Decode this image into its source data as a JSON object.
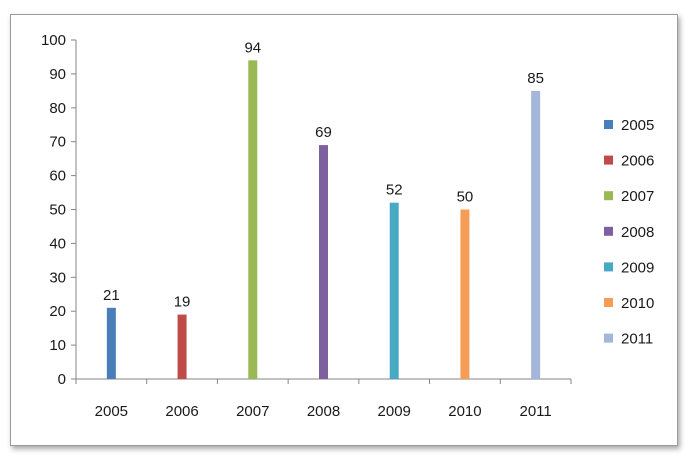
{
  "chart_data": {
    "type": "bar",
    "title": "",
    "xlabel": "",
    "ylabel": "",
    "categories": [
      "2005",
      "2006",
      "2007",
      "2008",
      "2009",
      "2010",
      "2011"
    ],
    "series": [
      {
        "name": "2005",
        "color": "#4A7EBB",
        "values": [
          21,
          null,
          null,
          null,
          null,
          null,
          null
        ]
      },
      {
        "name": "2006",
        "color": "#BE4B48",
        "values": [
          null,
          19,
          null,
          null,
          null,
          null,
          null
        ]
      },
      {
        "name": "2007",
        "color": "#98B954",
        "values": [
          null,
          null,
          94,
          null,
          null,
          null,
          null
        ]
      },
      {
        "name": "2008",
        "color": "#7D60A0",
        "values": [
          null,
          null,
          null,
          69,
          null,
          null,
          null
        ]
      },
      {
        "name": "2009",
        "color": "#46AAC5",
        "values": [
          null,
          null,
          null,
          null,
          52,
          null,
          null
        ]
      },
      {
        "name": "2010",
        "color": "#F59D56",
        "values": [
          null,
          null,
          null,
          null,
          null,
          50,
          null
        ]
      },
      {
        "name": "2011",
        "color": "#A5B6DB",
        "values": [
          null,
          null,
          null,
          null,
          null,
          null,
          85
        ]
      }
    ],
    "ylim": [
      0,
      100
    ],
    "yticks": [
      0,
      10,
      20,
      30,
      40,
      50,
      60,
      70,
      80,
      90,
      100
    ],
    "grid": false,
    "legend_position": "right"
  }
}
